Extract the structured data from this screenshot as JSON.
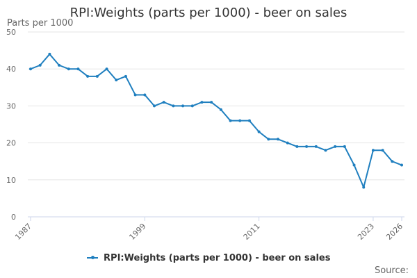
{
  "page": {
    "title": "RPI:Weights (parts per 1000) - beer on sales",
    "credits": "Source:"
  },
  "colors": {
    "series": "#1f7fbf",
    "grid": "#e6e6e6",
    "axis": "#ccd6eb",
    "tick_text": "#666666"
  },
  "chart_data": {
    "type": "line",
    "title": "RPI:Weights (parts per 1000) - beer on sales",
    "xlabel": "",
    "ylabel": "Parts per 1000",
    "ylim": [
      0,
      50
    ],
    "y_ticks": [
      0,
      10,
      20,
      30,
      40,
      50
    ],
    "x_ticks": [
      "1987",
      "1999",
      "2011",
      "2023",
      "2026"
    ],
    "grid": true,
    "legend": "bottom-center",
    "x": [
      "1987",
      "1988",
      "1989",
      "1990",
      "1991",
      "1992",
      "1993",
      "1994",
      "1995",
      "1996",
      "1997",
      "1998",
      "1999",
      "2000",
      "2001",
      "2002",
      "2003",
      "2004",
      "2005",
      "2006",
      "2007",
      "2008",
      "2009",
      "2010",
      "2011",
      "2012",
      "2013",
      "2014",
      "2015",
      "2016",
      "2017",
      "2018",
      "2019",
      "2020",
      "2021",
      "2022",
      "2023",
      "2024",
      "2025",
      "2026"
    ],
    "series": [
      {
        "name": "RPI:Weights (parts per 1000) - beer on sales",
        "values": [
          40,
          41,
          44,
          41,
          40,
          40,
          38,
          38,
          40,
          37,
          38,
          33,
          33,
          30,
          31,
          30,
          30,
          30,
          31,
          31,
          29,
          26,
          26,
          26,
          23,
          21,
          21,
          20,
          19,
          19,
          19,
          18,
          19,
          19,
          14,
          8,
          18,
          18,
          15,
          14
        ]
      }
    ]
  }
}
